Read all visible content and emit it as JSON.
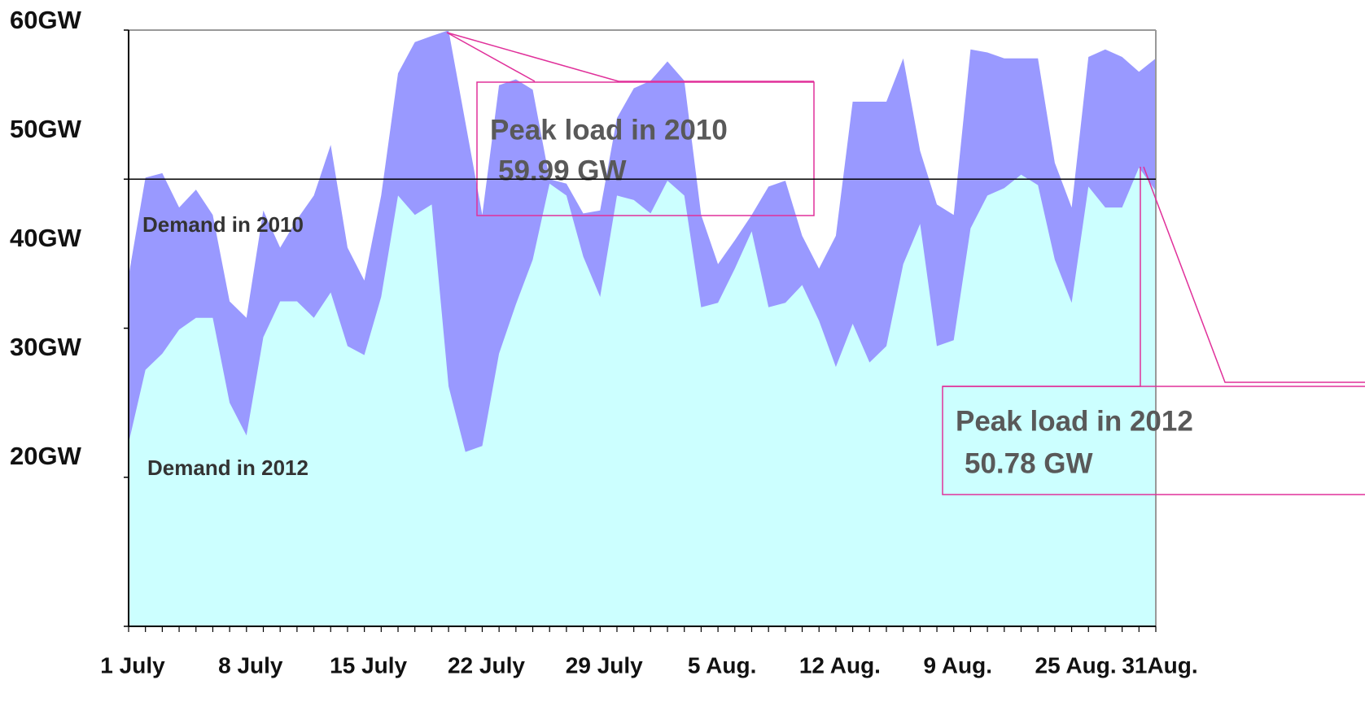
{
  "chart_data": {
    "type": "area",
    "categories": [
      "1 July",
      null,
      null,
      null,
      null,
      null,
      null,
      "8 July",
      null,
      null,
      null,
      null,
      null,
      null,
      "15 July",
      null,
      null,
      null,
      null,
      null,
      null,
      "22 July",
      null,
      null,
      null,
      null,
      null,
      null,
      "29 July",
      null,
      null,
      null,
      null,
      null,
      null,
      "5 Aug.",
      null,
      null,
      null,
      null,
      null,
      null,
      "12 Aug.",
      null,
      null,
      null,
      null,
      null,
      null,
      "9 Aug.",
      null,
      null,
      null,
      null,
      null,
      null,
      "25 Aug.",
      null,
      null,
      null,
      null,
      "31Aug."
    ],
    "series": [
      {
        "name": "Demand in 2010",
        "color": "#9999ff",
        "values": [
          43.5,
          50.1,
          50.4,
          48.1,
          49.3,
          47.6,
          41.8,
          40.7,
          47.9,
          45.4,
          47.3,
          48.9,
          52.3,
          45.4,
          43.2,
          48.9,
          57.1,
          59.2,
          59.6,
          59.99,
          53.8,
          47.6,
          56.3,
          56.7,
          56.0,
          50.0,
          49.7,
          47.7,
          47.9,
          54.1,
          56.1,
          56.6,
          57.9,
          56.6,
          47.6,
          44.3,
          45.9,
          47.6,
          49.5,
          49.9,
          46.2,
          44.0,
          46.2,
          55.2,
          55.2,
          55.2,
          58.1,
          51.9,
          48.3,
          47.6,
          58.7,
          58.5,
          58.1,
          58.1,
          58.1,
          51.1,
          48.1,
          58.2,
          58.7,
          58.2,
          57.2,
          58.1
        ]
      },
      {
        "name": "Demand in 2012",
        "color": "#ccffff",
        "values": [
          32.3,
          37.2,
          38.3,
          39.9,
          40.7,
          40.7,
          35.0,
          32.8,
          39.4,
          41.8,
          41.8,
          40.7,
          42.4,
          38.8,
          38.2,
          42.1,
          48.9,
          47.6,
          48.3,
          36.1,
          31.7,
          32.1,
          38.3,
          41.6,
          44.6,
          49.7,
          48.9,
          44.8,
          42.1,
          48.9,
          48.6,
          47.7,
          49.9,
          48.9,
          41.4,
          41.7,
          44.0,
          46.5,
          41.4,
          41.7,
          42.9,
          40.5,
          37.4,
          40.3,
          37.7,
          38.8,
          44.3,
          47.0,
          38.8,
          39.2,
          46.7,
          48.9,
          49.4,
          50.3,
          49.6,
          44.6,
          41.7,
          49.5,
          48.1,
          48.1,
          50.78,
          49.2
        ]
      }
    ],
    "ylim": [
      20,
      60
    ],
    "yticks": [
      {
        "value": 20,
        "label": "20GW"
      },
      {
        "value": 30,
        "label": "30GW"
      },
      {
        "value": 40,
        "label": "40GW"
      },
      {
        "value": 50,
        "label": "50GW"
      },
      {
        "value": 60,
        "label": "60GW"
      }
    ],
    "reference_line": 50,
    "annotations": [
      {
        "lines": [
          "Peak load in 2010",
          "59.99 GW"
        ]
      },
      {
        "lines": [
          "Peak load in 2012",
          "50.78 GW"
        ]
      }
    ]
  }
}
